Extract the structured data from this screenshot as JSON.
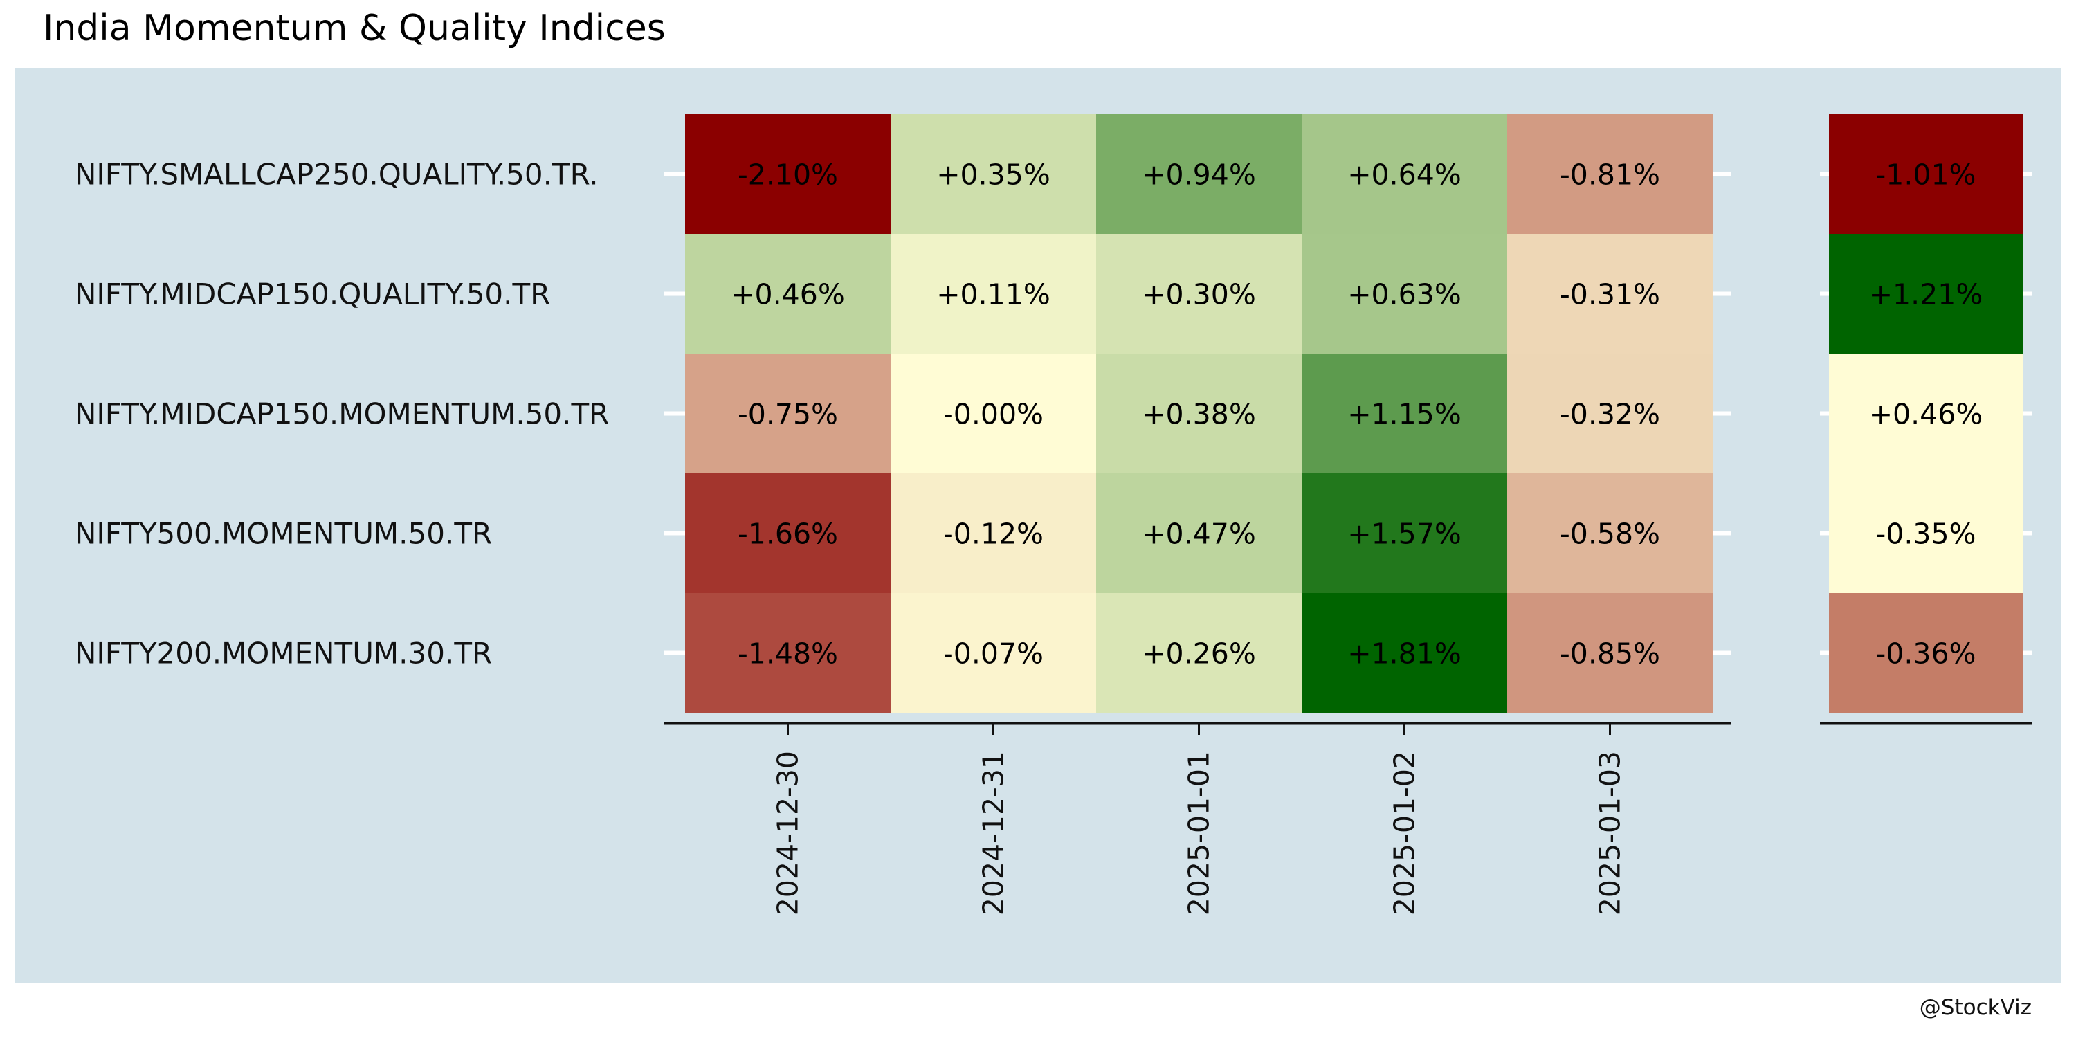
{
  "chart_data": {
    "type": "heatmap",
    "title": "India Momentum & Quality Indices",
    "caption": "@StockViz",
    "rows": [
      "NIFTY.SMALLCAP250.QUALITY.50.TR.",
      "NIFTY.MIDCAP150.QUALITY.50.TR",
      "NIFTY.MIDCAP150.MOMENTUM.50.TR",
      "NIFTY500.MOMENTUM.50.TR",
      "NIFTY200.MOMENTUM.30.TR"
    ],
    "columns": [
      "2024-12-30",
      "2024-12-31",
      "2025-01-01",
      "2025-01-02",
      "2025-01-03"
    ],
    "values": [
      [
        -2.1,
        0.35,
        0.94,
        0.64,
        -0.81
      ],
      [
        0.46,
        0.11,
        0.3,
        0.63,
        -0.31
      ],
      [
        -0.75,
        -0.0,
        0.38,
        1.15,
        -0.32
      ],
      [
        -1.66,
        -0.12,
        0.47,
        1.57,
        -0.58
      ],
      [
        -1.48,
        -0.07,
        0.26,
        1.81,
        -0.85
      ]
    ],
    "labels": [
      [
        "-2.10%",
        "+0.35%",
        "+0.94%",
        "+0.64%",
        "-0.81%"
      ],
      [
        "+0.46%",
        "+0.11%",
        "+0.30%",
        "+0.63%",
        "-0.31%"
      ],
      [
        "-0.75%",
        "-0.00%",
        "+0.38%",
        "+1.15%",
        "-0.32%"
      ],
      [
        "-1.66%",
        "-0.12%",
        "+0.47%",
        "+1.57%",
        "-0.58%"
      ],
      [
        "-1.48%",
        "-0.07%",
        "+0.26%",
        "+1.81%",
        "-0.85%"
      ]
    ],
    "summary": {
      "values": [
        -1.01,
        1.21,
        0.46,
        -0.35,
        -0.36
      ],
      "labels": [
        "-1.01%",
        "+1.21%",
        "+0.46%",
        "-0.35%",
        "-0.36%"
      ],
      "colors": [
        "#8b0000",
        "#006400",
        "#fffcd5",
        "#fffcd5",
        "#c47d67"
      ]
    },
    "colors": {
      "negative": "#8b0000",
      "neutral": "#fffcd5",
      "positive": "#006400",
      "panel_background": "#d4e3ea"
    }
  }
}
